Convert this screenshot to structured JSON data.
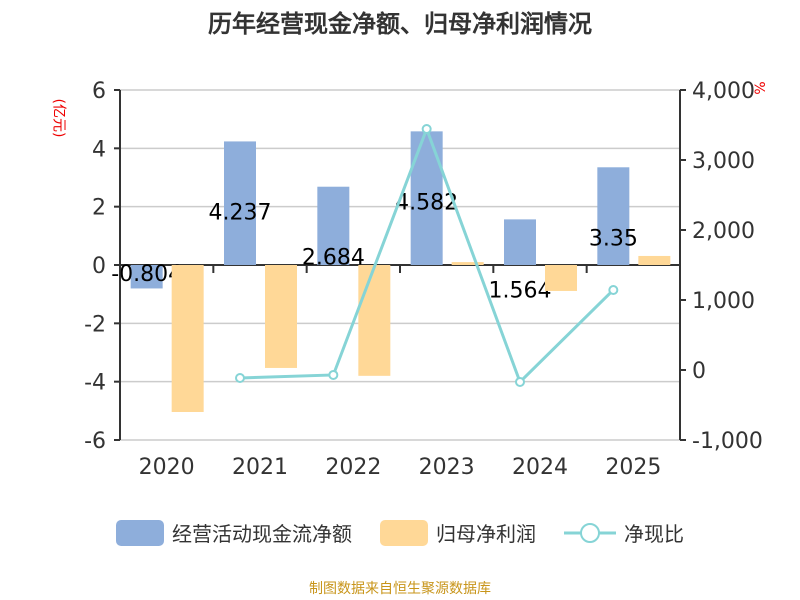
{
  "chart_data": {
    "type": "bar+line",
    "title": "历年经营现金净额、归母净利润情况",
    "categories": [
      "2020",
      "2021",
      "2022",
      "2023",
      "2024",
      "2025"
    ],
    "left_axis": {
      "unit": "(亿元)",
      "ylim": [
        -6,
        6
      ],
      "ticks": [
        "6",
        "4",
        "2",
        "0",
        "-2",
        "-4",
        "-6"
      ]
    },
    "right_axis": {
      "unit": "%",
      "ylim": [
        -1000,
        4000
      ],
      "ticks": [
        "4,000",
        "3,000",
        "2,000",
        "1,000",
        "0",
        "-1,000"
      ]
    },
    "grid": true,
    "legend_position": "bottom",
    "series": [
      {
        "name": "经营活动现金流净额",
        "type": "bar",
        "axis": "left",
        "color": "#8eaedb",
        "values": [
          -0.804,
          4.237,
          2.684,
          4.582,
          1.564,
          3.35
        ],
        "labels": [
          "-0.804",
          "4.237",
          "2.684",
          "4.582",
          "1.564",
          "3.35"
        ]
      },
      {
        "name": "归母净利润",
        "type": "bar",
        "axis": "left",
        "color": "#ffd897",
        "values": [
          -5.04,
          -3.53,
          -3.8,
          0.1,
          -0.89,
          0.31
        ]
      },
      {
        "name": "净现比",
        "type": "line",
        "axis": "right",
        "color": "#86d4d6",
        "values": [
          null,
          -114,
          -71,
          3443,
          -171,
          1143
        ]
      }
    ]
  },
  "source": "制图数据来自恒生聚源数据库"
}
